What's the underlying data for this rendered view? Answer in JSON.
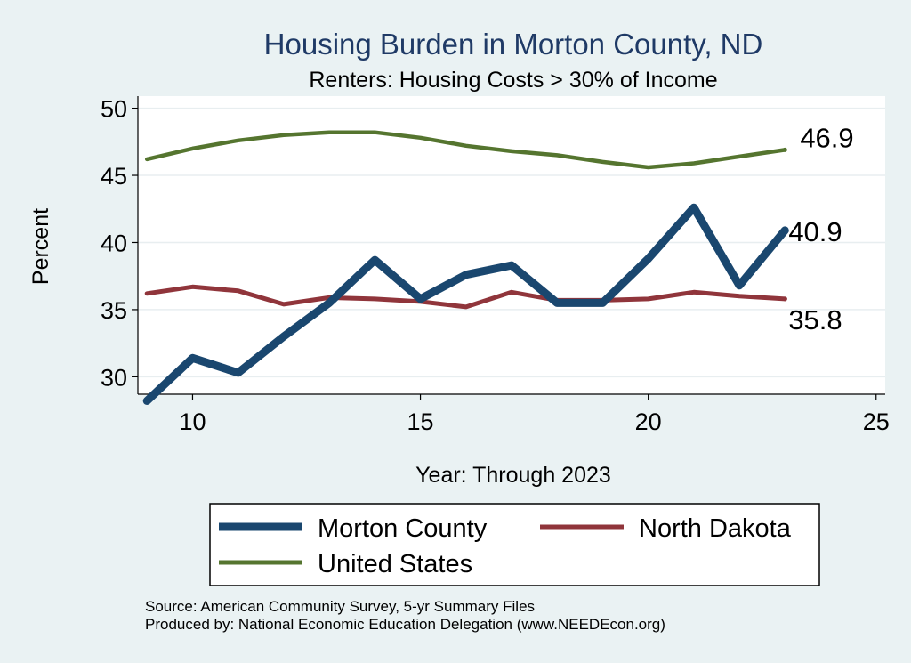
{
  "chart_data": {
    "type": "line",
    "title": "Housing Burden in Morton County, ND",
    "subtitle": "Renters: Housing Costs > 30% of Income",
    "xlabel": "Year: Through 2023",
    "ylabel": "Percent",
    "xlim": [
      8.8,
      25.2
    ],
    "ylim": [
      28.7,
      50.9
    ],
    "xticks": [
      10,
      15,
      20,
      25
    ],
    "yticks": [
      30,
      35,
      40,
      45,
      50
    ],
    "x": [
      9,
      10,
      11,
      12,
      13,
      14,
      15,
      16,
      17,
      18,
      19,
      20,
      21,
      22,
      23
    ],
    "series": [
      {
        "name": "Morton County",
        "color": "#1a476f",
        "values": [
          28.2,
          31.4,
          30.3,
          33.0,
          35.5,
          38.7,
          35.8,
          37.6,
          38.3,
          35.5,
          35.5,
          38.8,
          42.6,
          36.8,
          40.9
        ],
        "end_label": "40.9"
      },
      {
        "name": "North Dakota",
        "color": "#90353b",
        "values": [
          36.2,
          36.7,
          36.4,
          35.4,
          35.9,
          35.8,
          35.6,
          35.2,
          36.3,
          35.7,
          35.7,
          35.8,
          36.3,
          36.0,
          35.8
        ],
        "end_label": "35.8"
      },
      {
        "name": "United States",
        "color": "#55752f",
        "values": [
          46.2,
          47.0,
          47.6,
          48.0,
          48.2,
          48.2,
          47.8,
          47.2,
          46.8,
          46.5,
          46.0,
          45.6,
          45.9,
          46.4,
          46.9
        ],
        "end_label": "46.9"
      }
    ],
    "legend": {
      "position": "bottom",
      "entries": [
        "Morton County",
        "North Dakota",
        "United States"
      ]
    },
    "notes": [
      "Source: American Community Survey, 5-yr Summary Files",
      "Produced by: National Economic Education Delegation (www.NEEDEcon.org)"
    ],
    "grid": true
  }
}
